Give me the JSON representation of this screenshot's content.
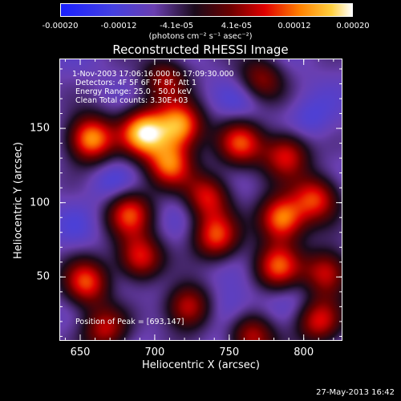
{
  "chart_data": {
    "type": "heatmap",
    "title": "Reconstructed RHESSI Image",
    "colorbar": {
      "ticks": [
        "-0.00020",
        "-0.00012",
        "-4.1e-05",
        "4.1e-05",
        "0.00012",
        "0.00020"
      ],
      "tick_values": [
        -0.0002,
        -0.00012,
        -4.1e-05,
        4.1e-05,
        0.00012,
        0.0002
      ],
      "range": [
        -0.0002,
        0.0002
      ],
      "units": "(photons cm⁻² s⁻¹ asec⁻²)"
    },
    "xlabel": "Heliocentric X (arcsec)",
    "ylabel": "Heliocentric Y (arcsec)",
    "xlim": [
      636,
      826
    ],
    "ylim": [
      7,
      197
    ],
    "xticks": [
      650,
      700,
      750,
      800
    ],
    "yticks": [
      50,
      100,
      150
    ],
    "annotations": {
      "time_range": "1-Nov-2003 17:06:16.000 to 17:09:30.000",
      "detectors": "Detectors: 4F 5F 6F 7F 8F, Att 1",
      "energy": "Energy Range: 25.0 - 50.0 keV",
      "method": "Clean     Total counts: 3.30E+03",
      "peak": "Position of Peak = [693,147]"
    },
    "peak": [
      693,
      147
    ],
    "sources": [
      {
        "x": 693,
        "y": 147,
        "value": 0.0002
      },
      {
        "x": 717,
        "y": 152,
        "value": 0.00016
      },
      {
        "x": 657,
        "y": 143,
        "value": 0.00017
      },
      {
        "x": 710,
        "y": 126,
        "value": 0.00013
      },
      {
        "x": 758,
        "y": 140,
        "value": 0.00011
      },
      {
        "x": 788,
        "y": 132,
        "value": 0.0001
      },
      {
        "x": 683,
        "y": 93,
        "value": 0.00011
      },
      {
        "x": 735,
        "y": 104,
        "value": 0.0001
      },
      {
        "x": 785,
        "y": 89,
        "value": 0.00016
      },
      {
        "x": 808,
        "y": 103,
        "value": 0.00011
      },
      {
        "x": 741,
        "y": 77,
        "value": 0.00011
      },
      {
        "x": 690,
        "y": 63,
        "value": 0.00011
      },
      {
        "x": 654,
        "y": 46,
        "value": 0.00012
      },
      {
        "x": 783,
        "y": 57,
        "value": 0.00011
      },
      {
        "x": 815,
        "y": 53,
        "value": 0.0001
      },
      {
        "x": 722,
        "y": 30,
        "value": 0.0001
      },
      {
        "x": 667,
        "y": 15,
        "value": 8e-05
      },
      {
        "x": 765,
        "y": 10,
        "value": 8e-05
      },
      {
        "x": 810,
        "y": 20,
        "value": 9e-05
      },
      {
        "x": 707,
        "y": 183,
        "value": 6e-05
      },
      {
        "x": 771,
        "y": 183,
        "value": 6e-05
      },
      {
        "x": 760,
        "y": 170,
        "value": -0.00012
      },
      {
        "x": 671,
        "y": 113,
        "value": -0.00012
      },
      {
        "x": 750,
        "y": 28,
        "value": -0.00013
      },
      {
        "x": 805,
        "y": 156,
        "value": -0.00012
      },
      {
        "x": 709,
        "y": 48,
        "value": -9e-05
      },
      {
        "x": 720,
        "y": 97,
        "value": -0.0001
      },
      {
        "x": 646,
        "y": 84,
        "value": -0.0001
      },
      {
        "x": 796,
        "y": 37,
        "value": -0.0001
      },
      {
        "x": 678,
        "y": 39,
        "value": -9e-05
      }
    ]
  },
  "timestamp": "27-May-2013 16:42"
}
